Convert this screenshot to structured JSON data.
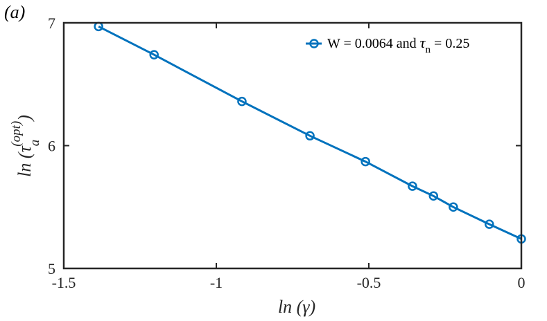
{
  "panel_label": "(a)",
  "chart_data": {
    "type": "line",
    "title": "",
    "xlabel": "ln (γ)",
    "ylabel": "ln (τ_a^(opt))",
    "xlim": [
      -1.5,
      0
    ],
    "ylim": [
      5,
      7
    ],
    "xticks": [
      -1.5,
      -1,
      -0.5,
      0
    ],
    "xtick_labels": [
      "-1.5",
      "-1",
      "-0.5",
      "0"
    ],
    "yticks": [
      5,
      6,
      7
    ],
    "ytick_labels": [
      "5",
      "6",
      "7"
    ],
    "grid": false,
    "legend_position": "top-right",
    "series": [
      {
        "name": "W = 0.0064 and τn = 0.25",
        "color": "#0072BD",
        "marker": "circle",
        "x": [
          -1.386,
          -1.204,
          -0.916,
          -0.693,
          -0.511,
          -0.357,
          -0.288,
          -0.223,
          -0.105,
          0.0
        ],
        "y": [
          6.97,
          6.74,
          6.36,
          6.08,
          5.87,
          5.67,
          5.59,
          5.5,
          5.36,
          5.24
        ]
      }
    ]
  }
}
